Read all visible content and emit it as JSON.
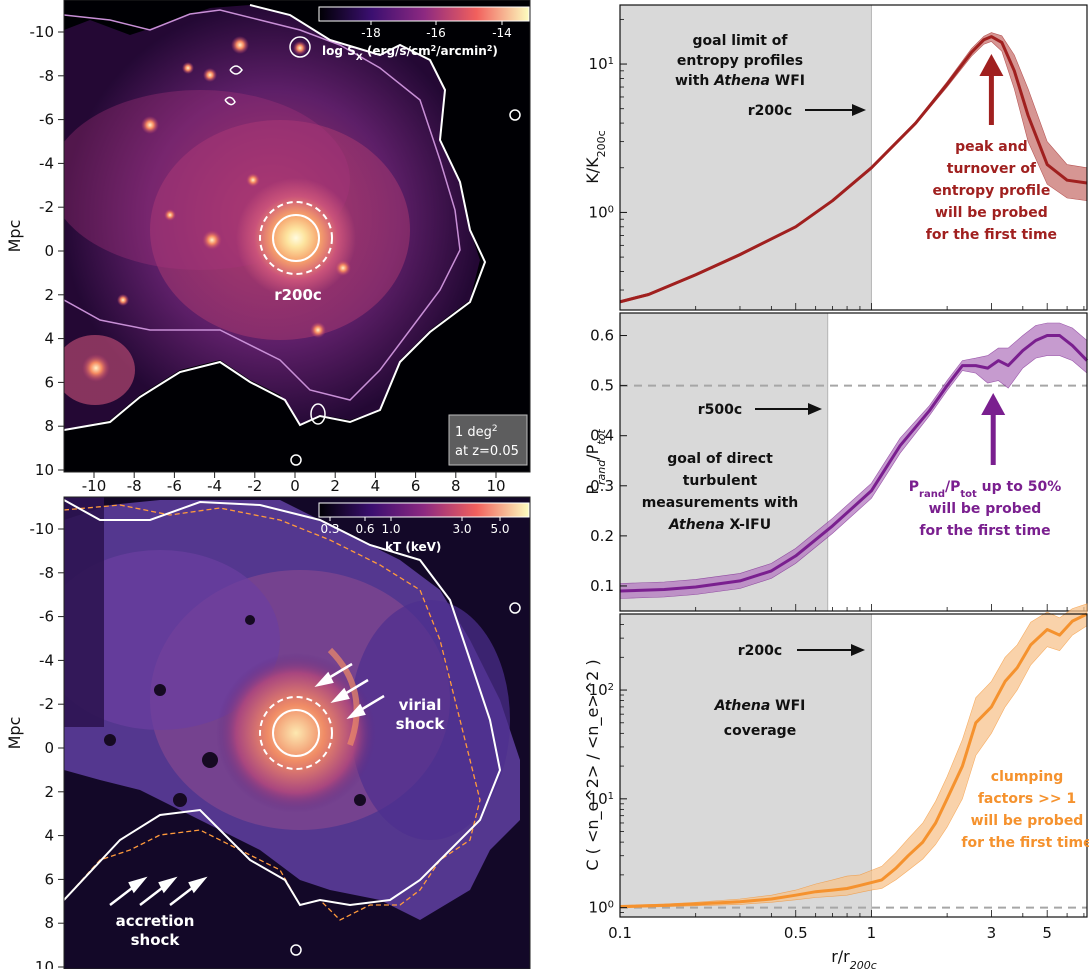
{
  "colors": {
    "entropy": "#a0201f",
    "entropy_band": "#c9736f",
    "pressure": "#7a1f8f",
    "pressure_band": "#b47ac0",
    "clumping": "#f5922e",
    "clumping_band": "#f7c48e",
    "shade": "#d9d9d9",
    "dash": "#a6a6a6"
  },
  "maps": {
    "top": {
      "ylabel": "Mpc",
      "y_ticks": [
        "-10",
        "-8",
        "-6",
        "-4",
        "-2",
        "0",
        "2",
        "4",
        "6",
        "8",
        "10"
      ],
      "x_ticks": [
        "-10",
        "-8",
        "-6",
        "-4",
        "-2",
        "0",
        "2",
        "4",
        "6",
        "8",
        "10"
      ],
      "colorbar_ticks": [
        "-18",
        "-16",
        "-14"
      ],
      "colorbar_label": "log S",
      "colorbar_label_sub": "X",
      "colorbar_label_units": " (erg/s/cm",
      "colorbar_label_sup": "2",
      "colorbar_label_end": "/arcmin",
      "colorbar_label_sup2": "2",
      "colorbar_label_close": ")",
      "radius_label": "r200c",
      "scale_box_line1": "1 deg",
      "scale_box_sup": "2",
      "scale_box_line2": "at z=0.05"
    },
    "bottom": {
      "ylabel": "Mpc",
      "y_ticks": [
        "-10",
        "-8",
        "-6",
        "-4",
        "-2",
        "0",
        "2",
        "4",
        "6",
        "8",
        "10"
      ],
      "colorbar_ticks": [
        "0.3",
        "0.6",
        "1.0",
        "3.0",
        "5.0"
      ],
      "colorbar_label": "kT (keV)",
      "virial_line1": "virial",
      "virial_line2": "shock",
      "accretion_line1": "accretion",
      "accretion_line2": "shock"
    }
  },
  "chart_data": [
    {
      "type": "line",
      "panel": "entropy",
      "ylabel": "K/K",
      "ylabel_sub": "200c",
      "xscale": "log",
      "yscale": "log",
      "xlim": [
        0.1,
        7.2
      ],
      "ylim": [
        0.22,
        25
      ],
      "y_ticks": [
        {
          "v": 1,
          "base": "10",
          "exp": "0"
        },
        {
          "v": 10,
          "base": "10",
          "exp": "1"
        }
      ],
      "x": [
        0.1,
        0.13,
        0.2,
        0.3,
        0.5,
        0.7,
        1.0,
        1.5,
        2.0,
        2.5,
        2.8,
        3.0,
        3.3,
        3.7,
        4.2,
        5.0,
        6.0,
        7.2
      ],
      "y": [
        0.25,
        0.28,
        0.38,
        0.52,
        0.8,
        1.2,
        2.0,
        4.0,
        7.3,
        12.0,
        14.6,
        15.3,
        14.0,
        9.0,
        4.5,
        2.1,
        1.65,
        1.58
      ],
      "band_lower": [
        0.245,
        0.275,
        0.373,
        0.51,
        0.785,
        1.18,
        1.96,
        3.9,
        7.0,
        11.3,
        13.6,
        14.2,
        12.2,
        6.8,
        3.0,
        1.55,
        1.25,
        1.2
      ],
      "band_upper": [
        0.255,
        0.285,
        0.387,
        0.53,
        0.815,
        1.22,
        2.04,
        4.1,
        7.6,
        12.7,
        15.4,
        16.3,
        15.5,
        11.5,
        6.8,
        3.0,
        2.1,
        2.0
      ],
      "shade_until": 1.0,
      "shade_text": [
        "goal limit of",
        "entropy profiles",
        "with "
      ],
      "shade_text_italic": "Athena",
      "shade_text_end": " WFI",
      "radius_label": "r200c",
      "arrow_label": [
        "peak and",
        "turnover of",
        "entropy profile",
        "will be probed",
        "for the first time"
      ]
    },
    {
      "type": "line",
      "panel": "pressure",
      "ylabel": "P",
      "ylabel_sub": "rand",
      "ylabel_mid": "/P",
      "ylabel_sub2": "tot",
      "xscale": "log",
      "yscale": "linear",
      "xlim": [
        0.1,
        7.2
      ],
      "ylim": [
        0.05,
        0.645
      ],
      "y_ticks": [
        {
          "v": 0.1,
          "t": "0.1"
        },
        {
          "v": 0.2,
          "t": "0.2"
        },
        {
          "v": 0.3,
          "t": "0.3"
        },
        {
          "v": 0.4,
          "t": "0.4"
        },
        {
          "v": 0.5,
          "t": "0.5"
        },
        {
          "v": 0.6,
          "t": "0.6"
        }
      ],
      "x": [
        0.1,
        0.15,
        0.2,
        0.3,
        0.4,
        0.5,
        0.7,
        1.0,
        1.3,
        1.7,
        2.0,
        2.3,
        2.6,
        2.9,
        3.2,
        3.5,
        4.0,
        4.5,
        5.0,
        5.6,
        6.3,
        7.2
      ],
      "y": [
        0.09,
        0.093,
        0.098,
        0.11,
        0.13,
        0.16,
        0.22,
        0.29,
        0.38,
        0.45,
        0.5,
        0.54,
        0.54,
        0.535,
        0.55,
        0.54,
        0.57,
        0.59,
        0.6,
        0.6,
        0.58,
        0.55
      ],
      "band_lower": [
        0.075,
        0.078,
        0.083,
        0.095,
        0.115,
        0.145,
        0.205,
        0.275,
        0.365,
        0.44,
        0.49,
        0.53,
        0.525,
        0.505,
        0.51,
        0.495,
        0.535,
        0.555,
        0.56,
        0.56,
        0.55,
        0.525
      ],
      "band_upper": [
        0.105,
        0.108,
        0.113,
        0.125,
        0.145,
        0.175,
        0.235,
        0.305,
        0.395,
        0.46,
        0.51,
        0.55,
        0.555,
        0.56,
        0.575,
        0.575,
        0.6,
        0.62,
        0.625,
        0.625,
        0.615,
        0.59
      ],
      "reference_line": 0.5,
      "shade_until": 0.67,
      "shade_text": [
        "goal of direct",
        "turbulent",
        "measurements with"
      ],
      "shade_text_italic": "Athena",
      "shade_text_end": " X-IFU",
      "radius_label": "r500c",
      "arrow_label_line1_a": "P",
      "arrow_label_line1_sub": "rand",
      "arrow_label_line1_b": "/P",
      "arrow_label_line1_sub2": "tot",
      "arrow_label_line1_c": " up to 50%",
      "arrow_label": [
        "will be probed",
        "for the first time"
      ]
    },
    {
      "type": "line",
      "panel": "clumping",
      "ylabel": "C (< n",
      "ylabel_full": "C ( <n_e^2> / <n_e>^2 )",
      "xlabel": "r/r",
      "xlabel_sub": "200c",
      "xscale": "log",
      "yscale": "log",
      "xlim": [
        0.1,
        7.2
      ],
      "ylim": [
        0.82,
        500
      ],
      "x_ticks": [
        {
          "v": 0.1,
          "t": "0.1"
        },
        {
          "v": 0.5,
          "t": "0.5"
        },
        {
          "v": 1,
          "t": "1"
        },
        {
          "v": 3,
          "t": "3"
        },
        {
          "v": 5,
          "t": "5"
        }
      ],
      "y_ticks": [
        {
          "v": 1,
          "base": "10",
          "exp": "0"
        },
        {
          "v": 10,
          "base": "10",
          "exp": "1"
        },
        {
          "v": 100,
          "base": "10",
          "exp": "2"
        }
      ],
      "x": [
        0.1,
        0.15,
        0.2,
        0.3,
        0.4,
        0.5,
        0.6,
        0.7,
        0.8,
        0.9,
        1.0,
        1.1,
        1.25,
        1.4,
        1.6,
        1.8,
        2.0,
        2.3,
        2.6,
        3.0,
        3.4,
        3.8,
        4.3,
        5.0,
        5.6,
        6.3,
        7.2
      ],
      "y": [
        1.02,
        1.05,
        1.08,
        1.13,
        1.2,
        1.3,
        1.4,
        1.45,
        1.5,
        1.6,
        1.7,
        1.8,
        2.3,
        3.0,
        4.0,
        6.0,
        10.0,
        20.0,
        50.0,
        70.0,
        120.0,
        160.0,
        260.0,
        360.0,
        320.0,
        430.0,
        500.0
      ],
      "band_lower": [
        1.0,
        1.02,
        1.04,
        1.07,
        1.12,
        1.18,
        1.24,
        1.27,
        1.3,
        1.38,
        1.45,
        1.5,
        1.8,
        2.2,
        2.8,
        3.8,
        5.5,
        10.0,
        25.0,
        40.0,
        70.0,
        100.0,
        170.0,
        250.0,
        230.0,
        320.0,
        390.0
      ],
      "band_upper": [
        1.05,
        1.08,
        1.12,
        1.2,
        1.3,
        1.45,
        1.65,
        1.8,
        1.95,
        2.0,
        2.2,
        2.4,
        3.2,
        4.3,
        6.0,
        9.5,
        16.0,
        35.0,
        85.0,
        120.0,
        200.0,
        260.0,
        420.0,
        520.0,
        460.0,
        560.0,
        620.0
      ],
      "reference_line": 1.0,
      "shade_until": 1.0,
      "radius_label": "r200c",
      "shade_text_italic": "Athena",
      "shade_text_end": " WFI",
      "shade_text2": "coverage",
      "arrow_label": [
        "clumping",
        "factors >> 1",
        "will be probed",
        "for the first time"
      ]
    }
  ]
}
